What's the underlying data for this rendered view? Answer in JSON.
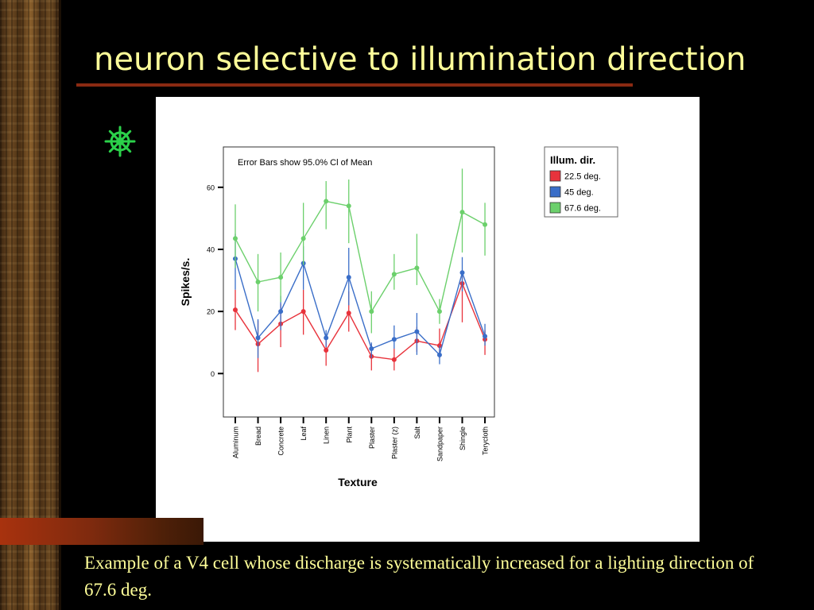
{
  "slide": {
    "title": "neuron selective to illumination direction",
    "caption": "Example of a V4 cell whose discharge is systematically increased for a lighting direction of 67.6 deg.",
    "bullet_icon": "ship-wheel-icon"
  },
  "colors": {
    "background": "#000000",
    "title_text": "#ffff99",
    "accent_rule": "#8b2a12",
    "bullet": "#2bd14a"
  },
  "chart_data": {
    "type": "line",
    "annotation": "Error Bars show  95.0% Cl of Mean",
    "xlabel": "Texture",
    "ylabel": "Spikes/s.",
    "categories": [
      "Aluminum",
      "Bread",
      "Concrete",
      "Leaf",
      "Linen",
      "Plant",
      "Plaster",
      "Plaster (z)",
      "Salt",
      "Sandpaper",
      "Shingle",
      "Terycloth"
    ],
    "ylim": [
      -14,
      73
    ],
    "yticks": [
      0,
      20,
      40,
      60
    ],
    "grid": false,
    "error_bars": "95% CI of mean",
    "legend": {
      "title": "Illum. dir.",
      "placement": "right, outside plot, top"
    },
    "series": [
      {
        "name": "22.5 deg.",
        "color": "#e8333c",
        "values": [
          20.5,
          9.5,
          16,
          20,
          7.5,
          19.5,
          5.5,
          4.5,
          10.5,
          9,
          29,
          11
        ],
        "ci_low": [
          14,
          0.5,
          8.5,
          12.5,
          2.5,
          13.5,
          1,
          1,
          7,
          5,
          16.5,
          6
        ],
        "ci_high": [
          27,
          17,
          22.5,
          27,
          12.5,
          26.5,
          9.5,
          8,
          15,
          14.5,
          31.5,
          14
        ]
      },
      {
        "name": "45 deg.",
        "color": "#3a6ec8",
        "values": [
          37,
          11.5,
          20,
          35.5,
          11.5,
          31,
          8,
          11,
          13.5,
          6,
          32.5,
          12
        ],
        "ci_low": [
          27,
          5,
          14,
          27,
          8.5,
          22,
          5,
          8,
          6,
          3,
          26.5,
          9
        ],
        "ci_high": [
          45,
          17.5,
          25,
          41,
          14,
          40.5,
          10,
          15.5,
          19.5,
          9,
          37.5,
          16
        ]
      },
      {
        "name": "67.6 deg.",
        "color": "#6cd06c",
        "values": [
          43.5,
          29.5,
          31,
          43.5,
          55.5,
          54,
          20,
          32,
          34,
          20,
          52,
          48
        ],
        "ci_low": [
          34,
          20,
          23,
          35,
          46.5,
          42,
          13,
          27,
          28.5,
          16,
          39,
          38
        ],
        "ci_high": [
          54.5,
          38.5,
          39,
          55,
          62,
          62.5,
          26.5,
          38.5,
          45,
          24,
          66,
          55
        ]
      }
    ]
  }
}
